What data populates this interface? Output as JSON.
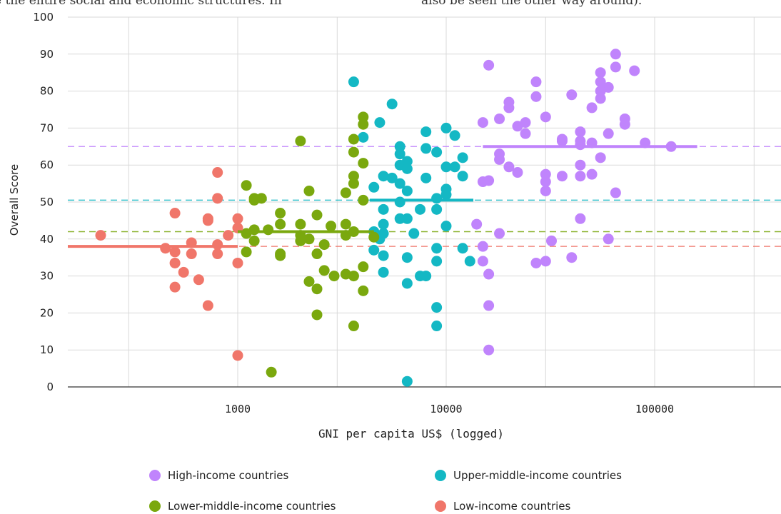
{
  "page": {
    "top_text_left": "e the entire social and economic structures. In",
    "top_text_right": "also be seen the other way around)."
  },
  "colors": {
    "high": "#c084fc",
    "upper": "#14b8c4",
    "lower": "#7aa80e",
    "low": "#f0766a"
  },
  "chart_data": {
    "type": "scatter",
    "title": "",
    "xlabel": "GNI per capita US$ (logged)",
    "ylabel": "Overall Score",
    "xscale": "log",
    "xlim": [
      150,
      400000
    ],
    "ylim": [
      0,
      100
    ],
    "x_ticks": [
      1000,
      10000,
      100000
    ],
    "x_tick_labels": [
      "1000",
      "10000",
      "100000"
    ],
    "y_ticks": [
      0,
      10,
      20,
      30,
      40,
      50,
      60,
      70,
      80,
      90,
      100
    ],
    "grid": true,
    "legend_position": "bottom",
    "series": [
      {
        "name": "High-income countries",
        "key": "high",
        "mean": 65,
        "mean_range": [
          15000,
          160000
        ],
        "points": [
          [
            16000,
            87
          ],
          [
            65000,
            90
          ],
          [
            65000,
            86.5
          ],
          [
            55000,
            85
          ],
          [
            80000,
            85.5
          ],
          [
            27000,
            82.5
          ],
          [
            55000,
            82.5
          ],
          [
            60000,
            81
          ],
          [
            55000,
            80
          ],
          [
            40000,
            79
          ],
          [
            27000,
            78.5
          ],
          [
            55000,
            78
          ],
          [
            20000,
            77
          ],
          [
            20000,
            75.5
          ],
          [
            50000,
            75.5
          ],
          [
            15000,
            71.5
          ],
          [
            18000,
            72.5
          ],
          [
            30000,
            73
          ],
          [
            22000,
            70.5
          ],
          [
            24000,
            71.5
          ],
          [
            72000,
            72.5
          ],
          [
            72000,
            71
          ],
          [
            24000,
            68.5
          ],
          [
            44000,
            69
          ],
          [
            60000,
            68.5
          ],
          [
            36000,
            67
          ],
          [
            44000,
            66.5
          ],
          [
            36000,
            66.5
          ],
          [
            50000,
            66
          ],
          [
            44000,
            65.5
          ],
          [
            90000,
            66
          ],
          [
            120000,
            65
          ],
          [
            18000,
            63
          ],
          [
            18000,
            61.5
          ],
          [
            55000,
            62
          ],
          [
            20000,
            59.5
          ],
          [
            22000,
            58
          ],
          [
            44000,
            60
          ],
          [
            30000,
            57.5
          ],
          [
            30000,
            55.5
          ],
          [
            36000,
            57
          ],
          [
            44000,
            57
          ],
          [
            50000,
            57.5
          ],
          [
            15000,
            55.5
          ],
          [
            16000,
            55.8
          ],
          [
            30000,
            53
          ],
          [
            65000,
            52.5
          ],
          [
            44000,
            45.5
          ],
          [
            14000,
            44
          ],
          [
            18000,
            41.5
          ],
          [
            32000,
            39.5
          ],
          [
            40000,
            35
          ],
          [
            60000,
            40
          ],
          [
            15000,
            38
          ],
          [
            15000,
            34
          ],
          [
            27000,
            33.5
          ],
          [
            30000,
            34
          ],
          [
            16000,
            30.5
          ],
          [
            16000,
            22
          ],
          [
            16000,
            10
          ]
        ]
      },
      {
        "name": "Upper-middle-income countries",
        "key": "upper",
        "mean": 50.5,
        "mean_range": [
          4300,
          13500
        ],
        "points": [
          [
            3600,
            82.5
          ],
          [
            5500,
            76.5
          ],
          [
            4800,
            71.5
          ],
          [
            10000,
            70
          ],
          [
            8000,
            69
          ],
          [
            11000,
            68
          ],
          [
            4000,
            67.5
          ],
          [
            6000,
            65
          ],
          [
            8000,
            64.5
          ],
          [
            9000,
            63.5
          ],
          [
            6000,
            63
          ],
          [
            6500,
            61
          ],
          [
            12000,
            62
          ],
          [
            6000,
            60
          ],
          [
            6500,
            59
          ],
          [
            10000,
            59.5
          ],
          [
            11000,
            59.5
          ],
          [
            5000,
            57
          ],
          [
            5500,
            56.5
          ],
          [
            8000,
            56.5
          ],
          [
            12000,
            57
          ],
          [
            6000,
            55
          ],
          [
            4500,
            54
          ],
          [
            6500,
            53
          ],
          [
            10000,
            53.5
          ],
          [
            10000,
            52
          ],
          [
            6000,
            50
          ],
          [
            9000,
            51
          ],
          [
            5000,
            48
          ],
          [
            7500,
            48
          ],
          [
            9000,
            48
          ],
          [
            6000,
            45.5
          ],
          [
            6500,
            45.5
          ],
          [
            10000,
            43.5
          ],
          [
            5000,
            44
          ],
          [
            4500,
            42
          ],
          [
            5000,
            41.5
          ],
          [
            7000,
            41.5
          ],
          [
            4800,
            40
          ],
          [
            9000,
            37.5
          ],
          [
            12000,
            37.5
          ],
          [
            4500,
            37
          ],
          [
            5000,
            35.5
          ],
          [
            6500,
            35
          ],
          [
            9000,
            34
          ],
          [
            13000,
            34
          ],
          [
            5000,
            31
          ],
          [
            7500,
            30
          ],
          [
            8000,
            30
          ],
          [
            6500,
            28
          ],
          [
            9000,
            21.5
          ],
          [
            9000,
            16.5
          ],
          [
            6500,
            1.5
          ]
        ]
      },
      {
        "name": "Lower-middle-income countries",
        "key": "lower",
        "mean": 42,
        "mean_range": [
          1000,
          4500
        ],
        "points": [
          [
            4000,
            73
          ],
          [
            4000,
            71
          ],
          [
            3600,
            67
          ],
          [
            2000,
            66.5
          ],
          [
            3600,
            63.5
          ],
          [
            4000,
            60.5
          ],
          [
            3600,
            57
          ],
          [
            1100,
            54.5
          ],
          [
            3600,
            55
          ],
          [
            2200,
            53
          ],
          [
            3300,
            52.5
          ],
          [
            1200,
            51
          ],
          [
            1300,
            51
          ],
          [
            1200,
            50.5
          ],
          [
            4000,
            50.5
          ],
          [
            1600,
            47
          ],
          [
            2400,
            46.5
          ],
          [
            1600,
            44
          ],
          [
            2000,
            44
          ],
          [
            2800,
            43.5
          ],
          [
            3300,
            44
          ],
          [
            1200,
            42.5
          ],
          [
            1400,
            42.5
          ],
          [
            1100,
            41.5
          ],
          [
            2000,
            41
          ],
          [
            3300,
            41
          ],
          [
            3600,
            42
          ],
          [
            2000,
            39.5
          ],
          [
            2200,
            40
          ],
          [
            1200,
            39.5
          ],
          [
            4500,
            40.5
          ],
          [
            2600,
            38.5
          ],
          [
            1100,
            36.5
          ],
          [
            1600,
            36
          ],
          [
            1600,
            35.5
          ],
          [
            2400,
            36
          ],
          [
            4000,
            32.5
          ],
          [
            2600,
            31.5
          ],
          [
            2900,
            30
          ],
          [
            3300,
            30.5
          ],
          [
            3600,
            30
          ],
          [
            2200,
            28.5
          ],
          [
            2400,
            26.5
          ],
          [
            4000,
            26
          ],
          [
            2400,
            19.5
          ],
          [
            3600,
            16.5
          ],
          [
            1450,
            4
          ]
        ]
      },
      {
        "name": "Low-income countries",
        "key": "low",
        "mean": 38,
        "mean_range": [
          150,
          1000
        ],
        "points": [
          [
            800,
            58
          ],
          [
            500,
            47
          ],
          [
            800,
            51
          ],
          [
            720,
            45.5
          ],
          [
            720,
            45
          ],
          [
            1000,
            45.5
          ],
          [
            1000,
            43
          ],
          [
            900,
            41
          ],
          [
            220,
            41
          ],
          [
            600,
            39
          ],
          [
            800,
            38.5
          ],
          [
            450,
            37.5
          ],
          [
            500,
            36.5
          ],
          [
            600,
            36
          ],
          [
            800,
            36
          ],
          [
            500,
            33.5
          ],
          [
            1000,
            33.5
          ],
          [
            550,
            31
          ],
          [
            650,
            29
          ],
          [
            500,
            27
          ],
          [
            720,
            22
          ],
          [
            1000,
            8.5
          ]
        ]
      }
    ]
  }
}
